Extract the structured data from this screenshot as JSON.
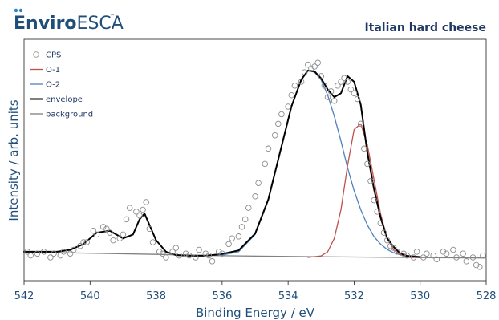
{
  "logo": {
    "brand_bold": "Enviro",
    "brand_light": "ESCA",
    "trademark": "™",
    "dot_color": "#2e86c1"
  },
  "chart_data": {
    "type": "line",
    "title": "Italian hard cheese",
    "xlabel": "Binding Energy / eV",
    "ylabel": "Intensity / arb. units",
    "xlim": [
      542,
      528
    ],
    "x_reversed": true,
    "ylim": [
      0,
      1.1
    ],
    "x_ticks": [
      542,
      540,
      538,
      536,
      534,
      532,
      530,
      528
    ],
    "x_tick_labels": [
      "542",
      "540",
      "538",
      "536",
      "534",
      "532",
      "530",
      "528"
    ],
    "grid": false,
    "legend_position": "top-left",
    "legend": [
      {
        "label": "CPS",
        "kind": "marker",
        "color": "#9a9a9a"
      },
      {
        "label": "O-1",
        "kind": "line",
        "color": "#c0504d"
      },
      {
        "label": "O-2",
        "kind": "line",
        "color": "#4f81bd"
      },
      {
        "label": "envelope",
        "kind": "line",
        "color": "#000000"
      },
      {
        "label": "background",
        "kind": "line",
        "color": "#808080"
      }
    ],
    "series": [
      {
        "name": "background",
        "color": "#808080",
        "x": [
          542.0,
          538.0,
          536.0,
          534.0,
          532.0,
          530.0,
          528.0
        ],
        "y": [
          0.028,
          0.016,
          0.009,
          0.005,
          0.002,
          -0.001,
          -0.003
        ]
      },
      {
        "name": "O-2",
        "color": "#4f81bd",
        "x": [
          536.0,
          535.5,
          535.0,
          534.6,
          534.2,
          533.9,
          533.6,
          533.4,
          533.2,
          533.0,
          532.8,
          532.6,
          532.4,
          532.2,
          532.0,
          531.8,
          531.6,
          531.4,
          531.2,
          531.0,
          530.8,
          530.6,
          530.3,
          530.0
        ],
        "y": [
          0.012,
          0.03,
          0.12,
          0.3,
          0.58,
          0.79,
          0.93,
          0.98,
          0.97,
          0.93,
          0.85,
          0.74,
          0.61,
          0.47,
          0.35,
          0.25,
          0.17,
          0.11,
          0.07,
          0.042,
          0.024,
          0.014,
          0.006,
          0.003
        ]
      },
      {
        "name": "O-1",
        "color": "#c0504d",
        "x": [
          533.4,
          533.0,
          532.8,
          532.6,
          532.4,
          532.2,
          532.0,
          531.8,
          531.6,
          531.4,
          531.2,
          531.0,
          530.8,
          530.6,
          530.4,
          530.2,
          530.0
        ],
        "y": [
          0.0,
          0.008,
          0.03,
          0.1,
          0.25,
          0.48,
          0.67,
          0.7,
          0.59,
          0.41,
          0.23,
          0.1,
          0.04,
          0.013,
          0.004,
          0.001,
          0.0
        ]
      },
      {
        "name": "envelope",
        "color": "#000000",
        "x": [
          542.0,
          541.0,
          540.6,
          540.2,
          539.8,
          539.4,
          539.0,
          538.7,
          538.5,
          538.35,
          538.2,
          538.0,
          537.7,
          537.4,
          537.0,
          536.5,
          536.0,
          535.5,
          535.0,
          534.6,
          534.2,
          533.9,
          533.6,
          533.4,
          533.2,
          533.0,
          532.8,
          532.6,
          532.4,
          532.2,
          532.0,
          531.8,
          531.6,
          531.4,
          531.2,
          531.0,
          530.8,
          530.6,
          530.4,
          530.0
        ],
        "y": [
          0.03,
          0.03,
          0.04,
          0.07,
          0.13,
          0.14,
          0.1,
          0.12,
          0.2,
          0.23,
          0.17,
          0.09,
          0.03,
          0.012,
          0.009,
          0.009,
          0.018,
          0.037,
          0.125,
          0.305,
          0.582,
          0.791,
          0.932,
          0.979,
          0.975,
          0.938,
          0.88,
          0.84,
          0.86,
          0.95,
          0.92,
          0.8,
          0.55,
          0.36,
          0.21,
          0.1,
          0.055,
          0.02,
          0.008,
          0.002
        ]
      }
    ],
    "scatter": {
      "name": "CPS",
      "color": "#8c8c8c",
      "x": [
        541.9,
        541.8,
        541.6,
        541.4,
        541.2,
        541.1,
        540.9,
        540.8,
        540.6,
        540.5,
        540.3,
        540.2,
        540.1,
        539.9,
        539.8,
        539.6,
        539.5,
        539.4,
        539.3,
        539.1,
        539.0,
        538.9,
        538.8,
        538.6,
        538.5,
        538.4,
        538.3,
        538.2,
        538.1,
        537.9,
        537.8,
        537.7,
        537.5,
        537.4,
        537.3,
        537.1,
        537.0,
        536.8,
        536.7,
        536.5,
        536.4,
        536.3,
        536.1,
        536.0,
        535.8,
        535.7,
        535.5,
        535.4,
        535.3,
        535.2,
        535.0,
        534.9,
        534.7,
        534.6,
        534.4,
        534.3,
        534.2,
        534.0,
        533.9,
        533.8,
        533.6,
        533.5,
        533.4,
        533.3,
        533.2,
        533.1,
        533.0,
        532.9,
        532.8,
        532.7,
        532.6,
        532.5,
        532.4,
        532.3,
        532.2,
        532.1,
        532.0,
        531.9,
        531.8,
        531.7,
        531.6,
        531.5,
        531.4,
        531.3,
        531.2,
        531.1,
        531.0,
        530.9,
        530.8,
        530.7,
        530.5,
        530.4,
        530.2,
        530.1,
        529.9,
        529.8,
        529.6,
        529.5,
        529.3,
        529.2,
        529.0,
        528.9,
        528.7,
        528.6,
        528.4,
        528.3,
        528.2,
        528.1
      ],
      "y": [
        0.03,
        0.01,
        0.02,
        0.03,
        0.0,
        0.02,
        0.01,
        0.03,
        0.02,
        0.04,
        0.06,
        0.08,
        0.08,
        0.14,
        0.12,
        0.16,
        0.15,
        0.13,
        0.09,
        0.1,
        0.12,
        0.2,
        0.26,
        0.24,
        0.22,
        0.25,
        0.29,
        0.15,
        0.08,
        0.03,
        0.02,
        0.0,
        0.03,
        0.05,
        0.01,
        0.02,
        0.01,
        0.0,
        0.04,
        0.02,
        0.01,
        -0.02,
        0.03,
        0.02,
        0.07,
        0.1,
        0.11,
        0.16,
        0.2,
        0.26,
        0.32,
        0.39,
        0.49,
        0.57,
        0.64,
        0.7,
        0.75,
        0.79,
        0.85,
        0.9,
        0.92,
        0.97,
        1.01,
        0.99,
        1.0,
        1.02,
        0.95,
        0.9,
        0.84,
        0.87,
        0.82,
        0.9,
        0.92,
        0.94,
        0.92,
        0.88,
        0.86,
        0.83,
        0.7,
        0.57,
        0.49,
        0.4,
        0.3,
        0.24,
        0.18,
        0.13,
        0.09,
        0.06,
        0.05,
        0.03,
        0.02,
        0.01,
        0.0,
        0.03,
        0.0,
        0.02,
        0.01,
        -0.01,
        0.03,
        0.02,
        0.04,
        0.0,
        0.02,
        -0.02,
        0.0,
        -0.04,
        -0.05,
        0.01
      ]
    }
  }
}
